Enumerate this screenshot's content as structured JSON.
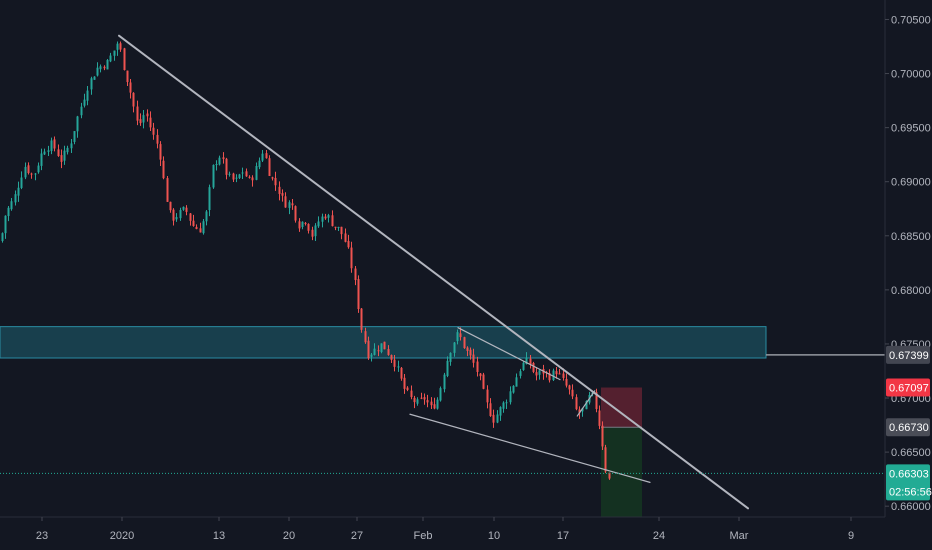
{
  "chart_data": {
    "type": "candlestick",
    "title": "",
    "xlabel": "",
    "ylabel": "",
    "ylim": [
      0.659,
      0.7068
    ],
    "y_ticks": [
      "0.70500",
      "0.70000",
      "0.69500",
      "0.69000",
      "0.68500",
      "0.68000",
      "0.67500",
      "0.67000",
      "0.66500",
      "0.66000"
    ],
    "x_ticks": [
      "23",
      "2020",
      "13",
      "20",
      "27",
      "Feb",
      "10",
      "17",
      "24",
      "Mar",
      "9"
    ],
    "grid": false,
    "price_path": [
      [
        0,
        0.6845
      ],
      [
        5,
        0.687
      ],
      [
        14,
        0.6885
      ],
      [
        24,
        0.6915
      ],
      [
        33,
        0.6905
      ],
      [
        43,
        0.693
      ],
      [
        52,
        0.6935
      ],
      [
        61,
        0.692
      ],
      [
        70,
        0.6935
      ],
      [
        79,
        0.6965
      ],
      [
        88,
        0.699
      ],
      [
        97,
        0.7005
      ],
      [
        107,
        0.701
      ],
      [
        113,
        0.702
      ],
      [
        118,
        0.703
      ],
      [
        124,
        0.7005
      ],
      [
        131,
        0.698
      ],
      [
        138,
        0.695
      ],
      [
        145,
        0.6965
      ],
      [
        152,
        0.6945
      ],
      [
        159,
        0.693
      ],
      [
        165,
        0.689
      ],
      [
        171,
        0.6865
      ],
      [
        178,
        0.687
      ],
      [
        185,
        0.6875
      ],
      [
        192,
        0.686
      ],
      [
        199,
        0.6855
      ],
      [
        206,
        0.687
      ],
      [
        213,
        0.6915
      ],
      [
        220,
        0.6925
      ],
      [
        227,
        0.6905
      ],
      [
        235,
        0.69
      ],
      [
        242,
        0.691
      ],
      [
        250,
        0.69
      ],
      [
        257,
        0.6915
      ],
      [
        263,
        0.693
      ],
      [
        270,
        0.6905
      ],
      [
        277,
        0.6895
      ],
      [
        284,
        0.688
      ],
      [
        291,
        0.688
      ],
      [
        298,
        0.686
      ],
      [
        305,
        0.6865
      ],
      [
        312,
        0.685
      ],
      [
        319,
        0.6865
      ],
      [
        326,
        0.687
      ],
      [
        333,
        0.686
      ],
      [
        340,
        0.6855
      ],
      [
        347,
        0.684
      ],
      [
        354,
        0.681
      ],
      [
        361,
        0.6765
      ],
      [
        368,
        0.674
      ],
      [
        375,
        0.6745
      ],
      [
        382,
        0.675
      ],
      [
        389,
        0.674
      ],
      [
        396,
        0.673
      ],
      [
        403,
        0.671
      ],
      [
        410,
        0.67
      ],
      [
        417,
        0.6695
      ],
      [
        424,
        0.67
      ],
      [
        431,
        0.669
      ],
      [
        438,
        0.67
      ],
      [
        445,
        0.673
      ],
      [
        452,
        0.675
      ],
      [
        458,
        0.676
      ],
      [
        465,
        0.6745
      ],
      [
        472,
        0.6735
      ],
      [
        479,
        0.672
      ],
      [
        486,
        0.6695
      ],
      [
        493,
        0.668
      ],
      [
        500,
        0.669
      ],
      [
        507,
        0.67
      ],
      [
        514,
        0.6715
      ],
      [
        521,
        0.673
      ],
      [
        528,
        0.6735
      ],
      [
        535,
        0.672
      ],
      [
        542,
        0.6725
      ],
      [
        549,
        0.672
      ],
      [
        556,
        0.6725
      ],
      [
        563,
        0.6715
      ],
      [
        570,
        0.6705
      ],
      [
        577,
        0.6685
      ],
      [
        584,
        0.669
      ],
      [
        591,
        0.6705
      ],
      [
        596,
        0.669
      ],
      [
        601,
        0.6665
      ],
      [
        606,
        0.663
      ],
      [
        611,
        0.662
      ]
    ],
    "drawings": {
      "descending_trendline": [
        [
          0.7035,
          0
        ],
        [
          0.6598,
          1
        ]
      ],
      "wedge_upper": [
        [
          0.6765,
          0
        ],
        [
          0.6717,
          1
        ]
      ],
      "wedge_lower": [
        [
          0.6685,
          0
        ],
        [
          0.6622,
          1
        ]
      ],
      "support_zone": [
        0.6737,
        0.6766
      ],
      "horizontal_level": 0.67399,
      "short_position": {
        "stop": 0.67097,
        "entry": 0.6673,
        "target": 0.659
      }
    },
    "price_labels": [
      {
        "value": "0.67399",
        "color": "#434651"
      },
      {
        "value": "0.67097",
        "color": "#f23645"
      },
      {
        "value": "0.66730",
        "color": "#4a4d57"
      },
      {
        "value": "0.66303",
        "color": "#22ab94"
      }
    ],
    "countdown": "02:56:56",
    "colors": {
      "background": "#131722",
      "up": "#26a69a",
      "down": "#ef5350",
      "trendline": "#b2b5be",
      "zone": "#1b4d5c",
      "zone_border": "#2a8ca3",
      "stop_area": "#5c2131",
      "target_area": "#143322",
      "current_price": "#22ab94"
    }
  }
}
